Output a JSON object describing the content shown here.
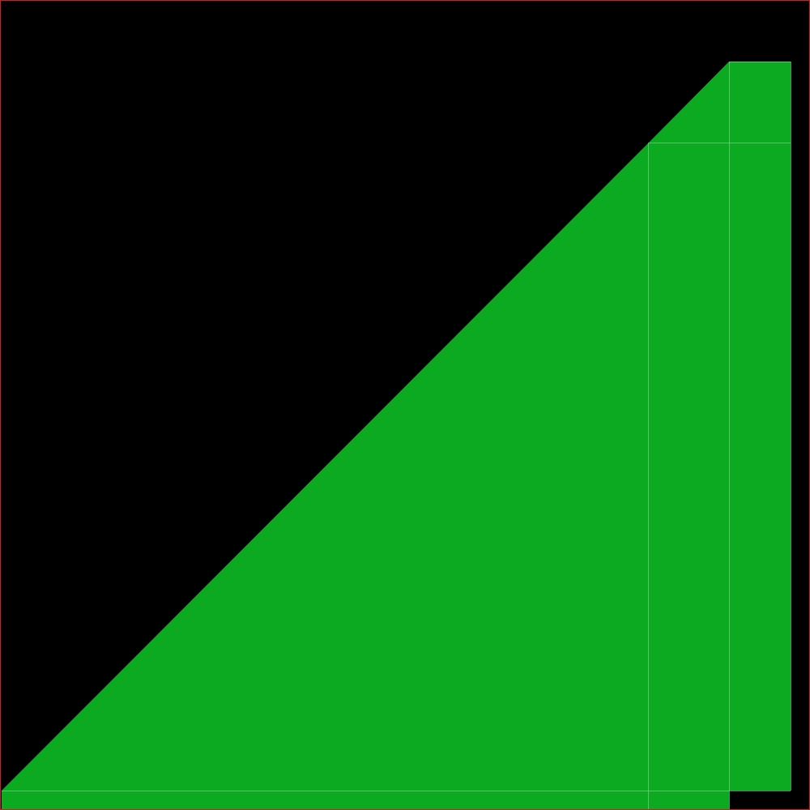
{
  "colors": {
    "background": "#000000",
    "fill": "#0CAA21",
    "seam": "#8FD49A",
    "frame": "#C8202A"
  },
  "shapes": [
    {
      "name": "main-triangle",
      "kind": "polygon"
    },
    {
      "name": "top-cap-triangle",
      "kind": "polygon"
    },
    {
      "name": "middle-column",
      "kind": "rect"
    },
    {
      "name": "right-column",
      "kind": "rect"
    },
    {
      "name": "bottom-strip",
      "kind": "rect"
    }
  ]
}
